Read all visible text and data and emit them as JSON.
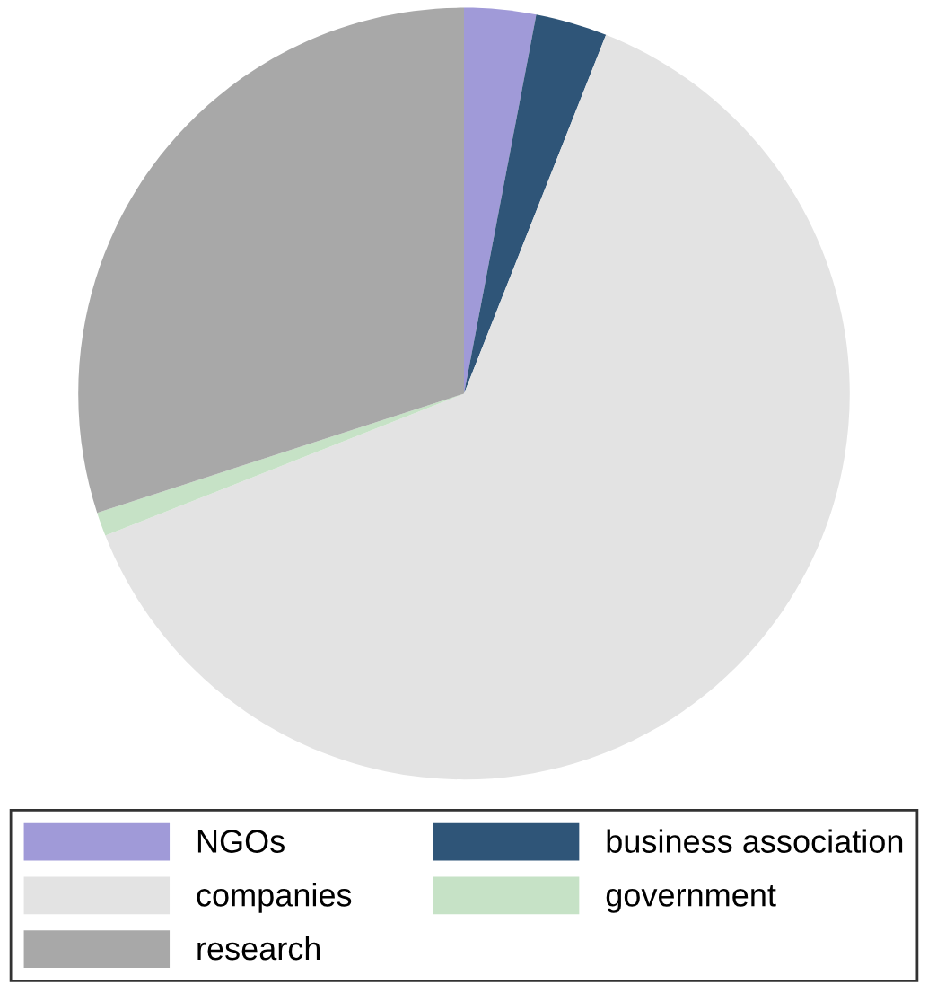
{
  "chart_data": {
    "type": "pie",
    "categories": [
      "NGOs",
      "business association",
      "companies",
      "government",
      "research"
    ],
    "values": [
      3,
      3,
      63,
      1,
      30
    ],
    "colors": [
      "#a09ad8",
      "#2f5578",
      "#e3e3e3",
      "#c6e2c6",
      "#a8a8a8"
    ],
    "legend": "bottom"
  }
}
